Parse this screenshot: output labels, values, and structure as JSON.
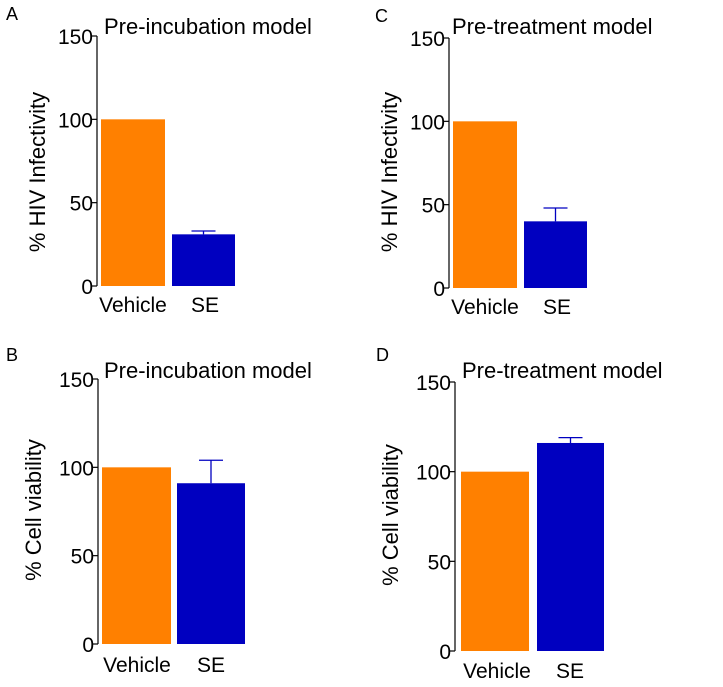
{
  "colors": {
    "vehicle": "#ff8000",
    "se": "#0000c0",
    "axis": "#000000"
  },
  "chart_data": [
    {
      "panel": "A",
      "type": "bar",
      "title": "Pre-incubation model",
      "ylabel": "% HIV Infectivity",
      "xlabel": "",
      "categories": [
        "Vehicle",
        "SE"
      ],
      "values": [
        100,
        31
      ],
      "errors": [
        0,
        2
      ],
      "ylim": [
        0,
        150
      ],
      "yticks": [
        0,
        50,
        100,
        150
      ],
      "grid": false
    },
    {
      "panel": "C",
      "type": "bar",
      "title": "Pre-treatment model",
      "ylabel": "% HIV Infectivity",
      "xlabel": "",
      "categories": [
        "Vehicle",
        "SE"
      ],
      "values": [
        100,
        40
      ],
      "errors": [
        0,
        8
      ],
      "ylim": [
        0,
        150
      ],
      "yticks": [
        0,
        50,
        100,
        150
      ],
      "grid": false
    },
    {
      "panel": "B",
      "type": "bar",
      "title": "Pre-incubation model",
      "ylabel": "% Cell viability",
      "xlabel": "",
      "categories": [
        "Vehicle",
        "SE"
      ],
      "values": [
        100,
        91
      ],
      "errors": [
        0,
        13
      ],
      "ylim": [
        0,
        150
      ],
      "yticks": [
        0,
        50,
        100,
        150
      ],
      "grid": false
    },
    {
      "panel": "D",
      "type": "bar",
      "title": "Pre-treatment model",
      "ylabel": "% Cell viability",
      "xlabel": "",
      "categories": [
        "Vehicle",
        "SE"
      ],
      "values": [
        100,
        116
      ],
      "errors": [
        0,
        3
      ],
      "ylim": [
        0,
        150
      ],
      "yticks": [
        0,
        50,
        100,
        150
      ],
      "grid": false
    }
  ]
}
